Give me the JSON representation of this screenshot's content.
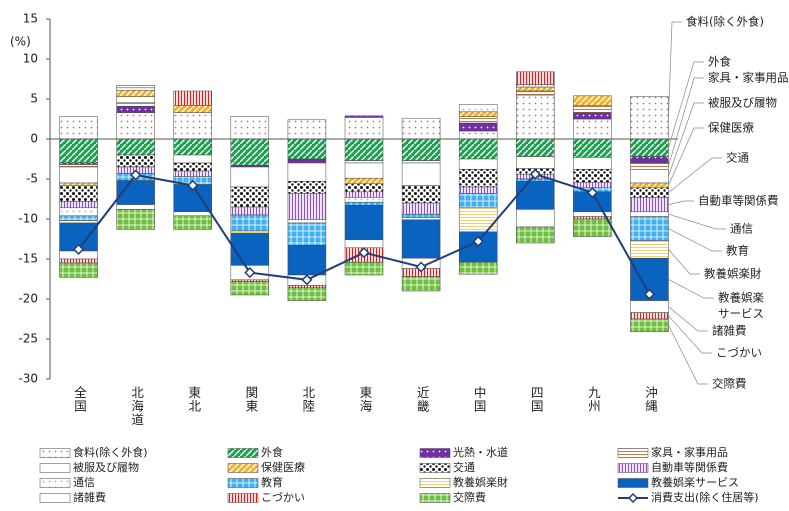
{
  "chart_data": {
    "type": "bar",
    "stacked": true,
    "ylabel": "(%)",
    "categories": [
      "全国",
      "北海道",
      "東北",
      "関東",
      "北陸",
      "東海",
      "近畿",
      "中国",
      "四国",
      "九州",
      "沖縄"
    ],
    "ylim": [
      -30,
      15
    ],
    "yticks": [
      15,
      10,
      5,
      0,
      -5,
      -10,
      -15,
      -20,
      -25,
      -30
    ],
    "series": [
      {
        "name": "食料(除く外食)",
        "color": "#e8606e",
        "values": [
          2.8,
          3.3,
          3.3,
          2.8,
          2.4,
          2.7,
          2.6,
          1,
          5.5,
          2.5,
          5.3
        ]
      },
      {
        "name": "外食",
        "color": "#1fa050",
        "values": [
          -3,
          -2,
          -2,
          -3.3,
          -2.5,
          -2.7,
          -2.7,
          -2.5,
          -2.2,
          -2.3,
          -2.2
        ]
      },
      {
        "name": "光熱・水道",
        "color": "#7030a0",
        "values": [
          -0.2,
          0.8,
          0,
          -0.2,
          -0.5,
          0.2,
          0,
          1,
          0,
          0.8,
          -0.8
        ]
      },
      {
        "name": "家具・家事用品",
        "color": "#c08040",
        "values": [
          -0.3,
          0.5,
          0,
          0,
          0,
          -0.3,
          -0.3,
          0.8,
          0.5,
          0.9,
          -0.8
        ]
      },
      {
        "name": "被服及び履物",
        "color": "#ffffff",
        "values": [
          -2,
          0.7,
          -1,
          -2.5,
          -2.3,
          -1.9,
          -2.8,
          -1.3,
          -1.5,
          -1.5,
          -1.7
        ]
      },
      {
        "name": "保健医療",
        "color": "#f0b030",
        "values": [
          -0.3,
          0.8,
          0.9,
          0,
          0,
          -0.7,
          0,
          0.6,
          0.5,
          1.2,
          -0.6
        ]
      },
      {
        "name": "交通",
        "color": "#111111",
        "values": [
          -2,
          -1.5,
          -1,
          -2.5,
          -1.5,
          -1,
          -2.2,
          -2.2,
          -0.7,
          -1.6,
          -1.2
        ]
      },
      {
        "name": "自動車等関係費",
        "color": "#9050c8",
        "values": [
          -0.8,
          -0.8,
          -0.7,
          -1,
          -3.3,
          -0.7,
          -1.4,
          -0.8,
          -0.6,
          -0.7,
          -1.8
        ]
      },
      {
        "name": "通信",
        "color": "#c8b060",
        "values": [
          -1,
          0.3,
          0,
          0,
          -0.4,
          -0.6,
          0,
          0.9,
          0.3,
          0,
          -0.6
        ]
      },
      {
        "name": "教育",
        "color": "#40b0f0",
        "values": [
          -0.6,
          -0.9,
          -1,
          -2,
          -2.8,
          -0.4,
          -0.4,
          -1.8,
          -0.3,
          -0.5,
          -3
        ]
      },
      {
        "name": "教養娯楽財",
        "color": "#f0d070",
        "values": [
          -0.3,
          0.3,
          0,
          -0.3,
          0,
          0,
          -0.3,
          -3,
          0,
          0,
          -2.2
        ]
      },
      {
        "name": "教養娯楽サービス",
        "color": "#0b63c0",
        "values": [
          -3.5,
          -3,
          -3.4,
          -4,
          -3.7,
          -4.3,
          -4.8,
          -3.8,
          -3.5,
          -2.5,
          -5.3
        ]
      },
      {
        "name": "諸雑費",
        "color": "#ffffff",
        "values": [
          -1,
          -0.6,
          -0.5,
          -1.8,
          -1.3,
          -1,
          -1.3,
          0,
          -2.2,
          -0.6,
          -1.5
        ]
      },
      {
        "name": "こづかい",
        "color": "#e02020",
        "values": [
          -0.5,
          0,
          1.8,
          -0.2,
          -0.3,
          -1.8,
          -1,
          0,
          1.6,
          -0.3,
          -0.8
        ]
      },
      {
        "name": "交際費",
        "color": "#70c040",
        "values": [
          -1.8,
          -2.5,
          -1.7,
          -1.7,
          -1.6,
          -1.6,
          -1.8,
          -1.5,
          -2,
          -2.2,
          -1.6
        ]
      },
      {
        "name": "消費支出(除く住居等)",
        "type": "line",
        "color": "#1f3e7a",
        "values": [
          -13.8,
          -4.5,
          -5.8,
          -16.7,
          -17.6,
          -14.2,
          -16,
          -12.8,
          -4.4,
          -6.7,
          -19.4
        ]
      }
    ],
    "annotations": [
      [
        "食料(除く外食)"
      ],
      [
        "外食"
      ],
      [
        "家具・家事用品"
      ],
      [
        "被服及び履物"
      ],
      [
        "保健医療"
      ],
      [
        "交通"
      ],
      [
        "自動車等関係費"
      ],
      [
        "通信"
      ],
      [
        "教育"
      ],
      [
        "教養娯楽財"
      ],
      [
        "教養娯楽",
        "サービス"
      ],
      [
        "諸雑費"
      ],
      [
        "こづかい"
      ],
      [
        "交際費"
      ]
    ]
  }
}
